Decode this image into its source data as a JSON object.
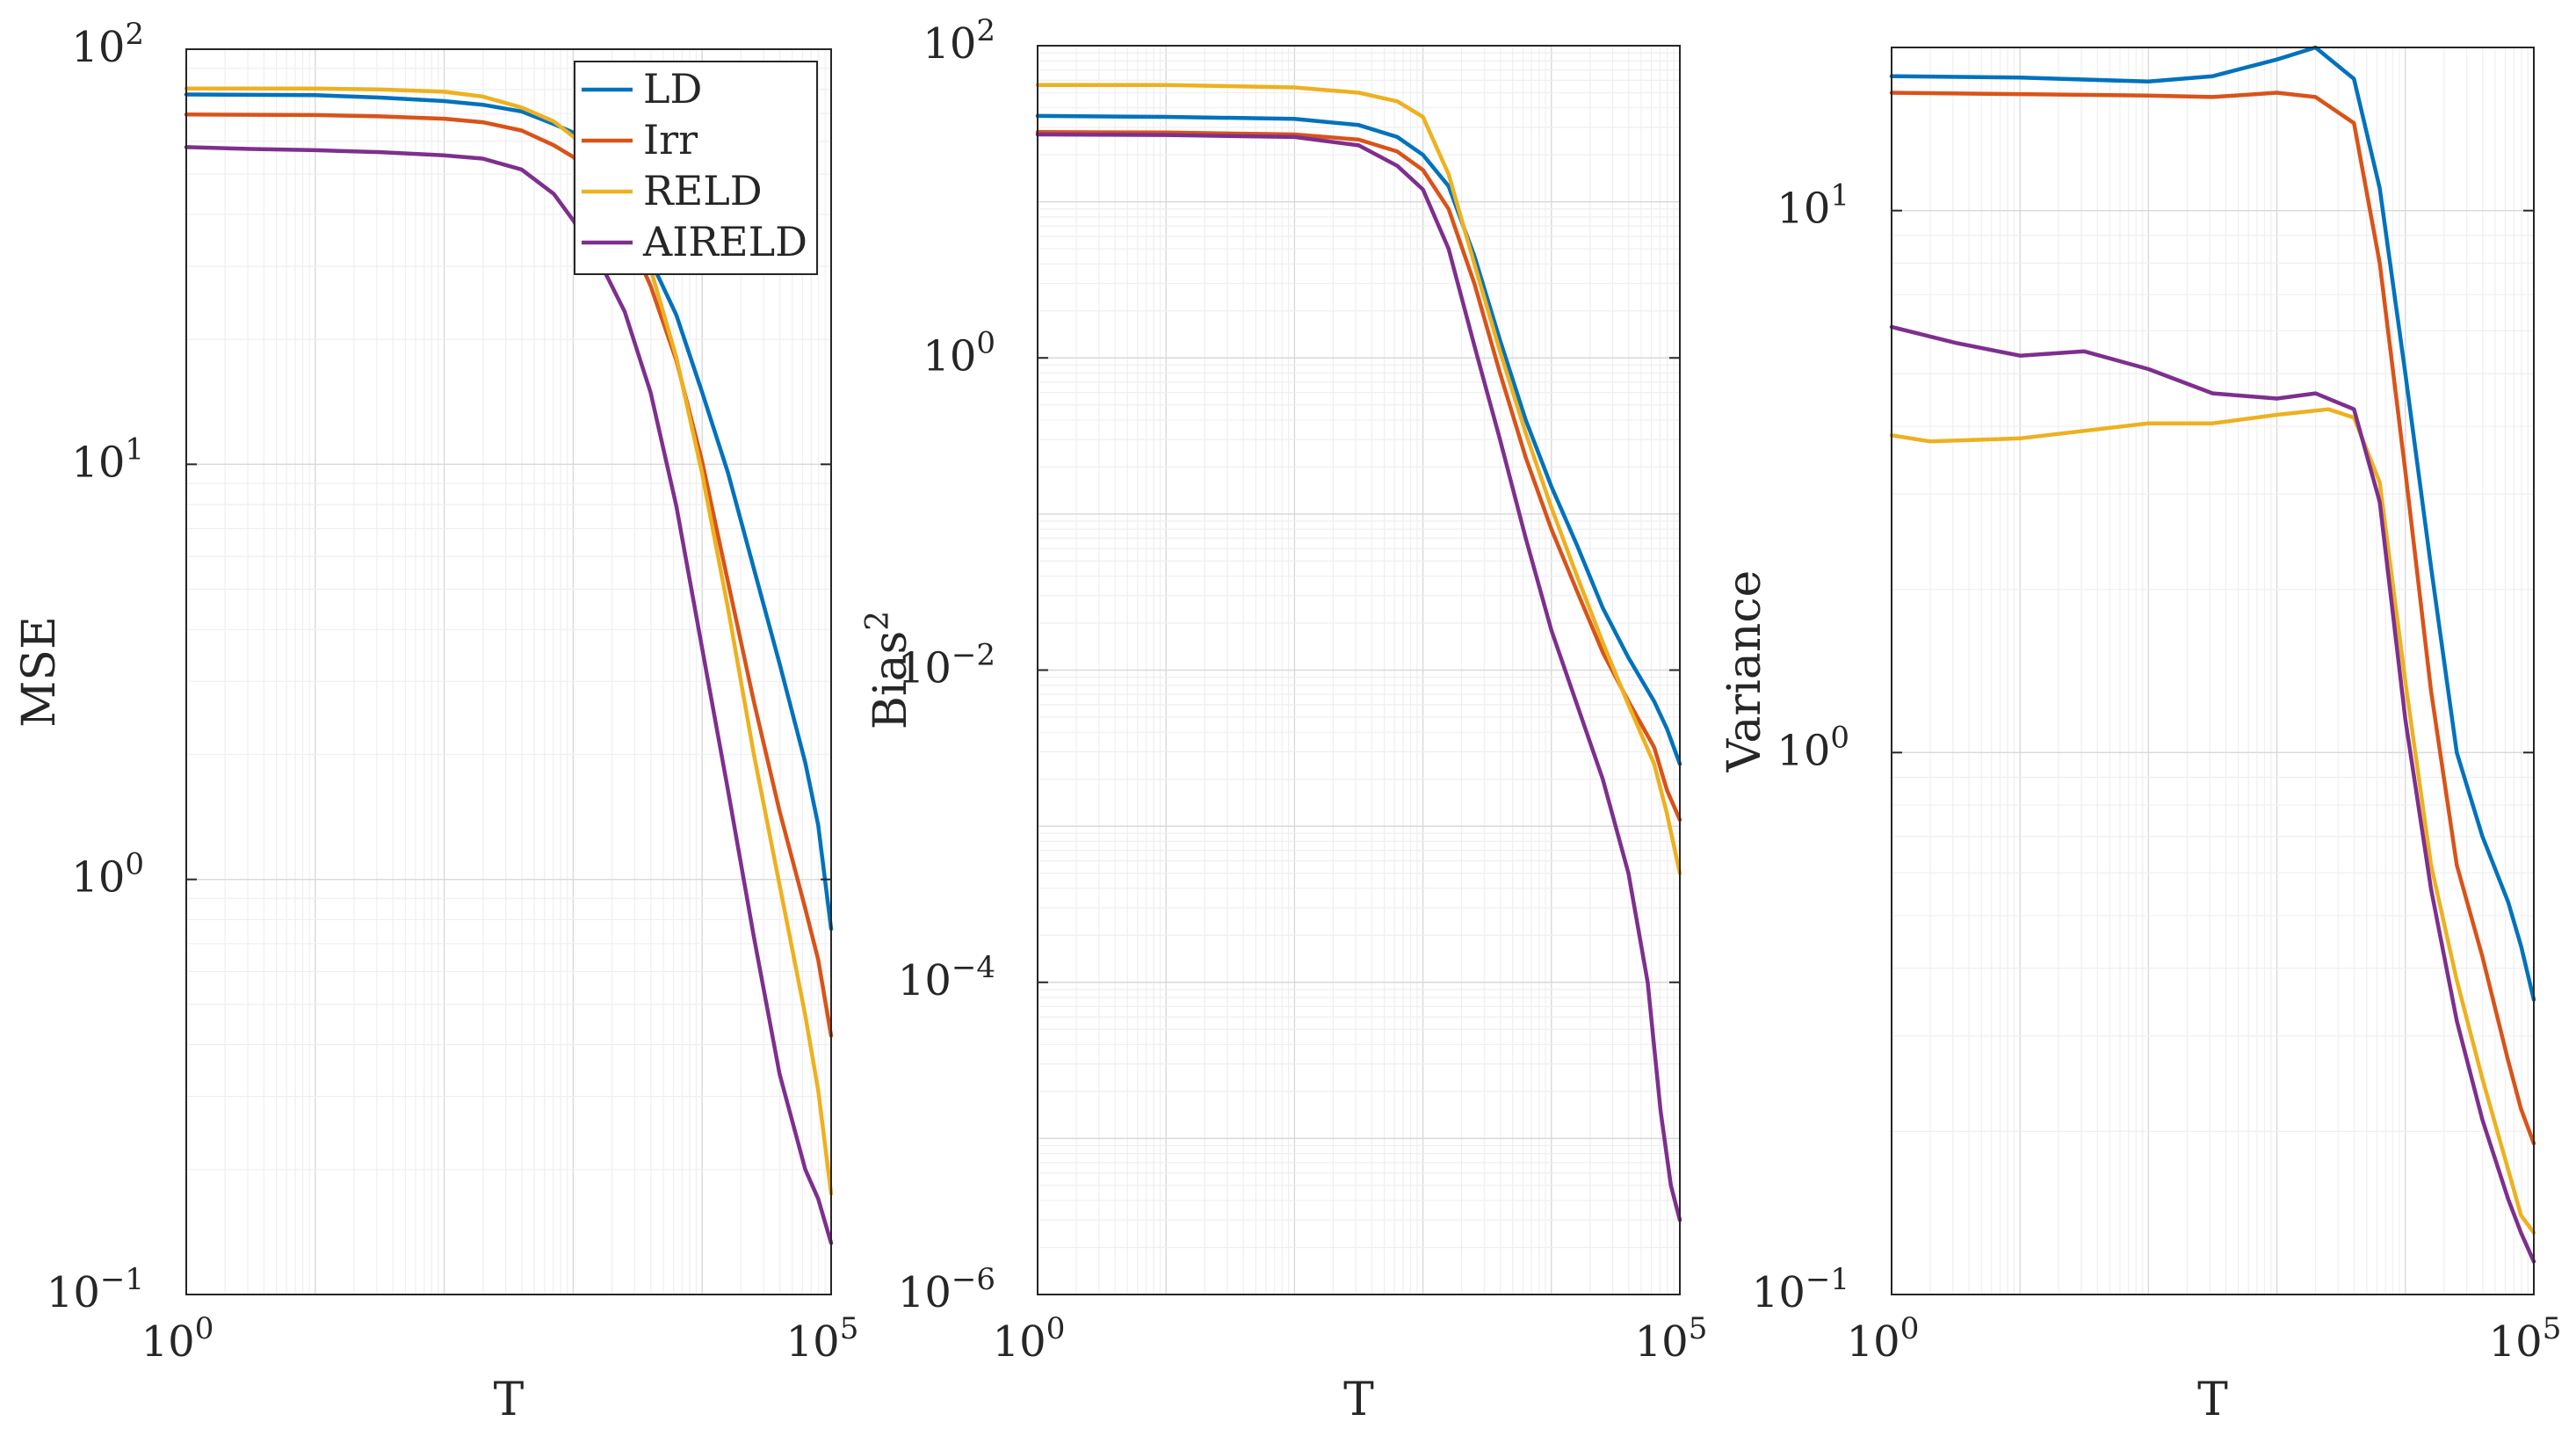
{
  "chart_data": [
    {
      "type": "line",
      "panel": "mse",
      "xscale": "log",
      "yscale": "log",
      "xlabel": "T",
      "ylabel": "MSE",
      "xlim": [
        1,
        100000
      ],
      "ylim": [
        0.1,
        100
      ],
      "xticks": [
        {
          "base": "10",
          "exp": "0"
        },
        {
          "base": "10",
          "exp": "5"
        }
      ],
      "yticks": [
        {
          "v": 0.1,
          "base": "10",
          "exp": "−1"
        },
        {
          "v": 1,
          "base": "10",
          "exp": "0"
        },
        {
          "v": 10,
          "base": "10",
          "exp": "1"
        },
        {
          "v": 100,
          "base": "10",
          "exp": "2"
        }
      ],
      "legend": {
        "placement": "top-right",
        "entries": [
          "LD",
          "Irr",
          "RELD",
          "AIRELD"
        ]
      },
      "grid": true,
      "series": [
        {
          "name": "LD",
          "color": "#0072BD",
          "points": [
            [
              0,
              77.8
            ],
            [
              1,
              77.5
            ],
            [
              1.5,
              76.5
            ],
            [
              2,
              75
            ],
            [
              2.3,
              73.5
            ],
            [
              2.6,
              70.8
            ],
            [
              2.85,
              66
            ],
            [
              3,
              63
            ],
            [
              3.2,
              55
            ],
            [
              3.4,
              42.6
            ],
            [
              3.6,
              31
            ],
            [
              3.8,
              22.9
            ],
            [
              4,
              14.9
            ],
            [
              4.2,
              9.54
            ],
            [
              4.4,
              5.62
            ],
            [
              4.6,
              3.31
            ],
            [
              4.8,
              1.91
            ],
            [
              4.9,
              1.35
            ],
            [
              5,
              0.76
            ]
          ]
        },
        {
          "name": "Irr",
          "color": "#D95319",
          "points": [
            [
              0,
              69.6
            ],
            [
              1,
              69.4
            ],
            [
              1.5,
              68.9
            ],
            [
              2,
              68
            ],
            [
              2.3,
              66.7
            ],
            [
              2.6,
              63.7
            ],
            [
              2.85,
              58.7
            ],
            [
              3,
              55
            ],
            [
              3.2,
              47.5
            ],
            [
              3.4,
              37.2
            ],
            [
              3.6,
              26.9
            ],
            [
              3.8,
              17.8
            ],
            [
              4,
              10.15
            ],
            [
              4.2,
              5.21
            ],
            [
              4.4,
              2.69
            ],
            [
              4.6,
              1.46
            ],
            [
              4.8,
              0.85
            ],
            [
              4.9,
              0.64
            ],
            [
              5,
              0.42
            ]
          ]
        },
        {
          "name": "RELD",
          "color": "#EDB120",
          "points": [
            [
              0,
              80.4
            ],
            [
              1,
              80.4
            ],
            [
              1.5,
              80
            ],
            [
              2,
              79
            ],
            [
              2.3,
              76.9
            ],
            [
              2.6,
              72.4
            ],
            [
              2.85,
              67
            ],
            [
              3,
              61.6
            ],
            [
              3.2,
              52.7
            ],
            [
              3.4,
              42
            ],
            [
              3.6,
              29.6
            ],
            [
              3.8,
              18.1
            ],
            [
              4,
              9.5
            ],
            [
              4.2,
              4.5
            ],
            [
              4.4,
              2.01
            ],
            [
              4.6,
              0.97
            ],
            [
              4.8,
              0.47
            ],
            [
              4.9,
              0.31
            ],
            [
              5,
              0.175
            ]
          ]
        },
        {
          "name": "AIRELD",
          "color": "#7E2F8E",
          "points": [
            [
              0,
              58.1
            ],
            [
              0.5,
              57.5
            ],
            [
              1,
              57.1
            ],
            [
              1.5,
              56.5
            ],
            [
              2,
              55.5
            ],
            [
              2.3,
              54.5
            ],
            [
              2.6,
              51.3
            ],
            [
              2.85,
              44.8
            ],
            [
              3,
              38.7
            ],
            [
              3.2,
              31
            ],
            [
              3.4,
              23.3
            ],
            [
              3.6,
              14.9
            ],
            [
              3.8,
              7.94
            ],
            [
              4,
              3.6
            ],
            [
              4.2,
              1.64
            ],
            [
              4.4,
              0.73
            ],
            [
              4.6,
              0.34
            ],
            [
              4.8,
              0.2
            ],
            [
              4.9,
              0.17
            ],
            [
              5,
              0.133
            ]
          ]
        }
      ]
    },
    {
      "type": "line",
      "panel": "bias",
      "xscale": "log",
      "yscale": "log",
      "xlabel": "T",
      "ylabel": "Bias",
      "ylabel_sup": "2",
      "xlim": [
        1,
        100000
      ],
      "ylim": [
        1e-06,
        100
      ],
      "xticks": [
        {
          "base": "10",
          "exp": "0"
        },
        {
          "base": "10",
          "exp": "5"
        }
      ],
      "yticks": [
        {
          "v": 1e-06,
          "base": "10",
          "exp": "−6"
        },
        {
          "v": 0.0001,
          "base": "10",
          "exp": "−4"
        },
        {
          "v": 0.01,
          "base": "10",
          "exp": "−2"
        },
        {
          "v": 1,
          "base": "10",
          "exp": "0"
        },
        {
          "v": 100,
          "base": "10",
          "exp": "2"
        }
      ],
      "grid": true,
      "series": [
        {
          "name": "LD",
          "color": "#0072BD",
          "points": [
            [
              0,
              35.5
            ],
            [
              1,
              35
            ],
            [
              2,
              34
            ],
            [
              2.5,
              31
            ],
            [
              2.8,
              26
            ],
            [
              3,
              20
            ],
            [
              3.2,
              12.6
            ],
            [
              3.4,
              4.5
            ],
            [
              3.6,
              1.3
            ],
            [
              3.8,
              0.4
            ],
            [
              4,
              0.15
            ],
            [
              4.2,
              0.063
            ],
            [
              4.4,
              0.025
            ],
            [
              4.6,
              0.012
            ],
            [
              4.8,
              0.0063
            ],
            [
              4.9,
              0.0042
            ],
            [
              5,
              0.0025
            ]
          ]
        },
        {
          "name": "Irr",
          "color": "#D95319",
          "points": [
            [
              0,
              28
            ],
            [
              1,
              27.8
            ],
            [
              2,
              27
            ],
            [
              2.5,
              25
            ],
            [
              2.8,
              21
            ],
            [
              3,
              16
            ],
            [
              3.2,
              9
            ],
            [
              3.4,
              3
            ],
            [
              3.6,
              0.8
            ],
            [
              3.8,
              0.23
            ],
            [
              4,
              0.08
            ],
            [
              4.2,
              0.032
            ],
            [
              4.4,
              0.013
            ],
            [
              4.6,
              0.0063
            ],
            [
              4.8,
              0.0032
            ],
            [
              4.9,
              0.0017
            ],
            [
              5,
              0.0011
            ]
          ]
        },
        {
          "name": "RELD",
          "color": "#EDB120",
          "points": [
            [
              0,
              56
            ],
            [
              1,
              56
            ],
            [
              2,
              54
            ],
            [
              2.5,
              50
            ],
            [
              2.8,
              44
            ],
            [
              3,
              35
            ],
            [
              3.2,
              15
            ],
            [
              3.4,
              4
            ],
            [
              3.6,
              1.1
            ],
            [
              3.8,
              0.33
            ],
            [
              4,
              0.11
            ],
            [
              4.2,
              0.04
            ],
            [
              4.4,
              0.015
            ],
            [
              4.6,
              0.006
            ],
            [
              4.8,
              0.0025
            ],
            [
              4.9,
              0.0012
            ],
            [
              5,
              0.0005
            ]
          ]
        },
        {
          "name": "AIRELD",
          "color": "#7E2F8E",
          "points": [
            [
              0,
              27
            ],
            [
              1,
              26.8
            ],
            [
              2,
              26
            ],
            [
              2.5,
              23
            ],
            [
              2.8,
              17
            ],
            [
              3,
              12
            ],
            [
              3.2,
              5
            ],
            [
              3.4,
              1.2
            ],
            [
              3.6,
              0.3
            ],
            [
              3.8,
              0.07
            ],
            [
              4,
              0.018
            ],
            [
              4.2,
              0.006
            ],
            [
              4.4,
              0.002
            ],
            [
              4.6,
              0.0005
            ],
            [
              4.75,
              0.0001
            ],
            [
              4.85,
              1.5e-05
            ],
            [
              4.93,
              5e-06
            ],
            [
              5,
              3e-06
            ]
          ]
        }
      ]
    },
    {
      "type": "line",
      "panel": "variance",
      "xscale": "log",
      "yscale": "log",
      "xlabel": "T",
      "ylabel": "Variance",
      "xlim": [
        1,
        100000
      ],
      "ylim": [
        0.1,
        20
      ],
      "xticks": [
        {
          "base": "10",
          "exp": "0"
        },
        {
          "base": "10",
          "exp": "5"
        }
      ],
      "yticks": [
        {
          "v": 0.1,
          "base": "10",
          "exp": "−1"
        },
        {
          "v": 1,
          "base": "10",
          "exp": "0"
        },
        {
          "v": 10,
          "base": "10",
          "exp": "1"
        }
      ],
      "grid": true,
      "series": [
        {
          "name": "LD",
          "color": "#0072BD",
          "points": [
            [
              0,
              17.7
            ],
            [
              1,
              17.6
            ],
            [
              2,
              17.3
            ],
            [
              2.5,
              17.7
            ],
            [
              3,
              19
            ],
            [
              3.3,
              20
            ],
            [
              3.6,
              17.5
            ],
            [
              3.8,
              11
            ],
            [
              4,
              5
            ],
            [
              4.2,
              2.2
            ],
            [
              4.4,
              1
            ],
            [
              4.6,
              0.7
            ],
            [
              4.8,
              0.53
            ],
            [
              4.9,
              0.44
            ],
            [
              5,
              0.35
            ]
          ]
        },
        {
          "name": "Irr",
          "color": "#D95319",
          "points": [
            [
              0,
              16.5
            ],
            [
              1,
              16.4
            ],
            [
              2,
              16.3
            ],
            [
              2.5,
              16.2
            ],
            [
              3,
              16.5
            ],
            [
              3.3,
              16.2
            ],
            [
              3.6,
              14.5
            ],
            [
              3.8,
              8
            ],
            [
              4,
              3.3
            ],
            [
              4.2,
              1.3
            ],
            [
              4.4,
              0.62
            ],
            [
              4.6,
              0.42
            ],
            [
              4.8,
              0.27
            ],
            [
              4.9,
              0.22
            ],
            [
              5,
              0.19
            ]
          ]
        },
        {
          "name": "RELD",
          "color": "#EDB120",
          "points": [
            [
              0,
              3.85
            ],
            [
              0.3,
              3.75
            ],
            [
              1,
              3.8
            ],
            [
              2,
              4.05
            ],
            [
              2.3,
              4.05
            ],
            [
              2.5,
              4.05
            ],
            [
              3,
              4.2
            ],
            [
              3.4,
              4.3
            ],
            [
              3.6,
              4.15
            ],
            [
              3.8,
              3.15
            ],
            [
              4,
              1.35
            ],
            [
              4.2,
              0.62
            ],
            [
              4.4,
              0.38
            ],
            [
              4.6,
              0.25
            ],
            [
              4.8,
              0.17
            ],
            [
              4.9,
              0.14
            ],
            [
              5,
              0.13
            ]
          ]
        },
        {
          "name": "AIRELD",
          "color": "#7E2F8E",
          "points": [
            [
              0,
              6.1
            ],
            [
              0.5,
              5.7
            ],
            [
              1,
              5.4
            ],
            [
              1.5,
              5.5
            ],
            [
              2,
              5.1
            ],
            [
              2.5,
              4.6
            ],
            [
              3,
              4.5
            ],
            [
              3.3,
              4.6
            ],
            [
              3.6,
              4.3
            ],
            [
              3.8,
              2.9
            ],
            [
              4,
              1.15
            ],
            [
              4.2,
              0.56
            ],
            [
              4.4,
              0.32
            ],
            [
              4.6,
              0.21
            ],
            [
              4.8,
              0.15
            ],
            [
              4.9,
              0.13
            ],
            [
              5,
              0.115
            ]
          ]
        }
      ]
    }
  ]
}
